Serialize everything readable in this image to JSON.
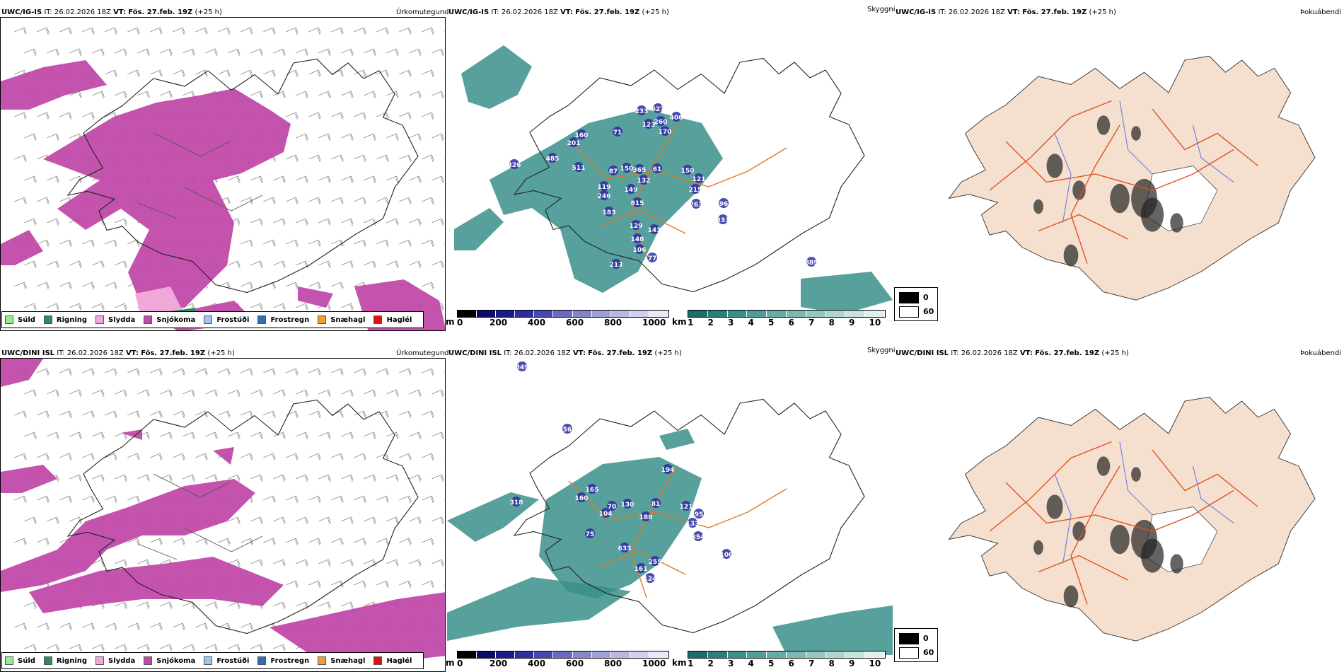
{
  "rows": [
    {
      "model": "UWC/IG-IS",
      "it_label": "IT:",
      "it_value": "26.02.2026 18Z",
      "vt_label": "VT:",
      "vt_value": "Fös. 27.feb. 19Z",
      "lead": "(+25 h)",
      "precip_name": "Úrkomutegund",
      "cloud_name": "Skyggni",
      "sun_name": "Þokuábendi",
      "peaks": [
        {
          "id": "p1",
          "label": "627"
        },
        {
          "id": "p2",
          "label": "233"
        },
        {
          "id": "p3",
          "label": "406"
        },
        {
          "id": "p4",
          "label": "260"
        },
        {
          "id": "p5",
          "label": "123"
        },
        {
          "id": "p6",
          "label": "170"
        },
        {
          "id": "p7",
          "label": "71"
        },
        {
          "id": "p8",
          "label": "160"
        },
        {
          "id": "p9",
          "label": "201"
        },
        {
          "id": "p10",
          "label": "485"
        },
        {
          "id": "p11",
          "label": "326"
        },
        {
          "id": "p12",
          "label": "511"
        },
        {
          "id": "p13",
          "label": "87"
        },
        {
          "id": "p14",
          "label": "150"
        },
        {
          "id": "p15",
          "label": "365"
        },
        {
          "id": "p16",
          "label": "61"
        },
        {
          "id": "p17",
          "label": "150"
        },
        {
          "id": "p18",
          "label": "121"
        },
        {
          "id": "p19",
          "label": "132"
        },
        {
          "id": "p20",
          "label": "119"
        },
        {
          "id": "p21",
          "label": "149"
        },
        {
          "id": "p22",
          "label": "246"
        },
        {
          "id": "p23",
          "label": "215"
        },
        {
          "id": "p24",
          "label": "815"
        },
        {
          "id": "p25",
          "label": "96"
        },
        {
          "id": "p26",
          "label": "263"
        },
        {
          "id": "p27",
          "label": "331"
        },
        {
          "id": "p28",
          "label": "183"
        },
        {
          "id": "p29",
          "label": "129"
        },
        {
          "id": "p30",
          "label": "141"
        },
        {
          "id": "p31",
          "label": "148"
        },
        {
          "id": "p32",
          "label": "106"
        },
        {
          "id": "p33",
          "label": "77"
        },
        {
          "id": "p34",
          "label": "213"
        },
        {
          "id": "p35",
          "label": "889"
        }
      ]
    },
    {
      "model": "UWC/DINI ISL",
      "it_label": "IT:",
      "it_value": "26.02.2026 18Z",
      "vt_label": "VT:",
      "vt_value": "Fös. 27.feb. 19Z",
      "lead": "(+25 h)",
      "precip_name": "Úrkomutegund",
      "cloud_name": "Skyggni",
      "sun_name": "Þokuábendi",
      "peaks": [
        {
          "id": "q1",
          "label": "849"
        },
        {
          "id": "q2",
          "label": "56"
        },
        {
          "id": "q3",
          "label": "194"
        },
        {
          "id": "q4",
          "label": "165"
        },
        {
          "id": "q5",
          "label": "160"
        },
        {
          "id": "q6",
          "label": "318"
        },
        {
          "id": "q7",
          "label": "70"
        },
        {
          "id": "q8",
          "label": "130"
        },
        {
          "id": "q9",
          "label": "81"
        },
        {
          "id": "q10",
          "label": "121"
        },
        {
          "id": "q11",
          "label": "95"
        },
        {
          "id": "q12",
          "label": "104"
        },
        {
          "id": "q13",
          "label": "188"
        },
        {
          "id": "q14",
          "label": "133"
        },
        {
          "id": "q15",
          "label": "75"
        },
        {
          "id": "q16",
          "label": "354"
        },
        {
          "id": "q17",
          "label": "633"
        },
        {
          "id": "q18",
          "label": "100"
        },
        {
          "id": "q19",
          "label": "255"
        },
        {
          "id": "q20",
          "label": "161"
        },
        {
          "id": "q21",
          "label": "124"
        }
      ]
    }
  ],
  "precip_legend": [
    {
      "label": "Súld",
      "color": "#90ee90"
    },
    {
      "label": "Rigning",
      "color": "#2e8b57"
    },
    {
      "label": "Slydda",
      "color": "#f0a8d8"
    },
    {
      "label": "Snjókoma",
      "color": "#c04aa8"
    },
    {
      "label": "Frostúði",
      "color": "#9ec5f0"
    },
    {
      "label": "Frostregn",
      "color": "#2f6fb3"
    },
    {
      "label": "Snæhagl",
      "color": "#f0a030"
    },
    {
      "label": "Haglél",
      "color": "#e01010"
    }
  ],
  "ceiling_bar": {
    "unit": "m",
    "ticks": [
      "0",
      "200",
      "400",
      "600",
      "800",
      "1000"
    ],
    "colors": [
      "#000000",
      "#0b0b6e",
      "#1a1a8a",
      "#2d2da0",
      "#4747b0",
      "#6a6ac0",
      "#8585c8",
      "#a0a0d8",
      "#b8b8e0",
      "#d0d0f0",
      "#e8e8f8"
    ]
  },
  "vis_bar": {
    "unit": "km",
    "ticks": [
      "1",
      "2",
      "3",
      "4",
      "5",
      "6",
      "7",
      "8",
      "9",
      "10"
    ],
    "colors": [
      "#1d6e6a",
      "#2a7f7a",
      "#3a8f89",
      "#4f9d96",
      "#66aba4",
      "#7db9b2",
      "#96c7c0",
      "#afd4ce",
      "#c8e2dd",
      "#e2f0ed"
    ]
  },
  "sun_legend": {
    "max": "0",
    "min": "60"
  },
  "colors": {
    "snow": "#c04aa8",
    "sleet": "#f0a8d8",
    "rain": "#2e8b57",
    "vis_teal": "#3a8f89",
    "ceiling_blue": "#2d2da0",
    "road_orange": "#e07820",
    "land_beige": "#f5e0d0",
    "river_blue": "#7080e0"
  }
}
